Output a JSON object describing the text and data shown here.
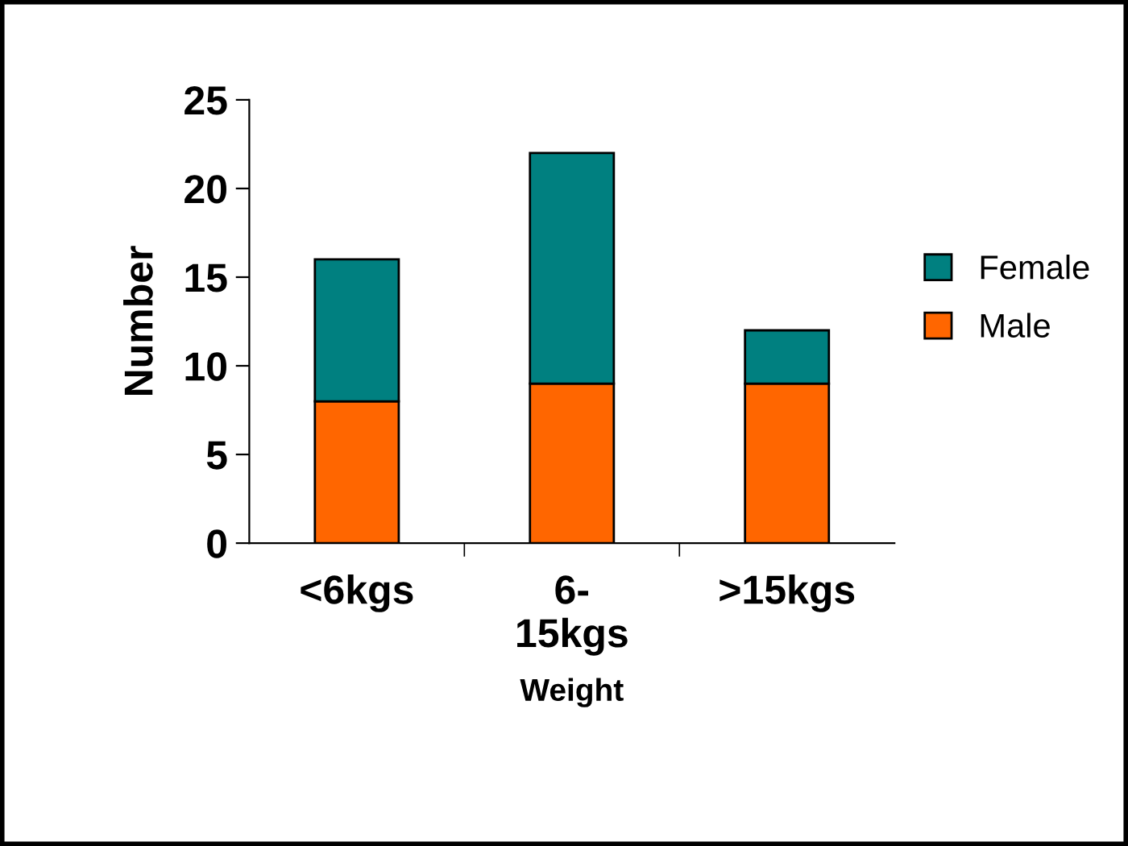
{
  "chart_data": {
    "type": "bar",
    "stacked": true,
    "xlabel": "Weight",
    "ylabel": "Number",
    "categories": [
      "<6kgs",
      "6-\n15kgs",
      ">15kgs"
    ],
    "series": [
      {
        "name": "Male",
        "color": "#ff6600",
        "values": [
          8,
          9,
          9
        ]
      },
      {
        "name": "Female",
        "color": "#008080",
        "values": [
          8,
          13,
          3
        ]
      }
    ],
    "ylim": [
      0,
      25
    ],
    "yticks": [
      0,
      5,
      10,
      15,
      20,
      25
    ],
    "grid": false,
    "legend": "right"
  }
}
